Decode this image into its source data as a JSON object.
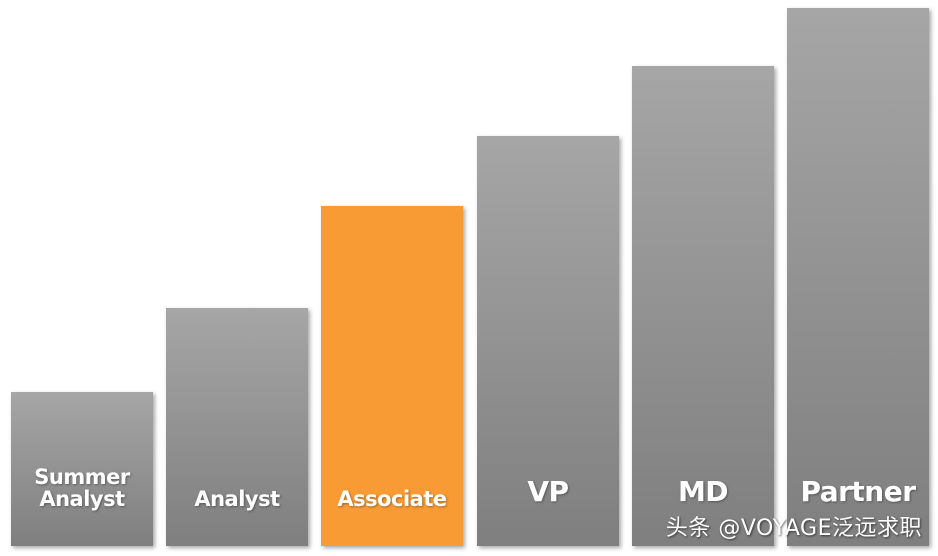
{
  "colors": {
    "bar_gray_top": "#a6a6a6",
    "bar_gray_bottom": "#7f7f7f",
    "highlight": "#f99b35",
    "label": "#ffffff"
  },
  "chart_data": {
    "type": "bar",
    "categories": [
      "Summer\nAnalyst",
      "Analyst",
      "Associate",
      "VP",
      "MD",
      "Partner"
    ],
    "values": [
      1,
      2,
      3,
      4,
      5,
      6
    ],
    "highlighted_category": "Associate",
    "title": "",
    "xlabel": "",
    "ylabel": "",
    "grid": false,
    "legend": "none"
  },
  "watermark": "头条 @VOYAGE泛远求职"
}
